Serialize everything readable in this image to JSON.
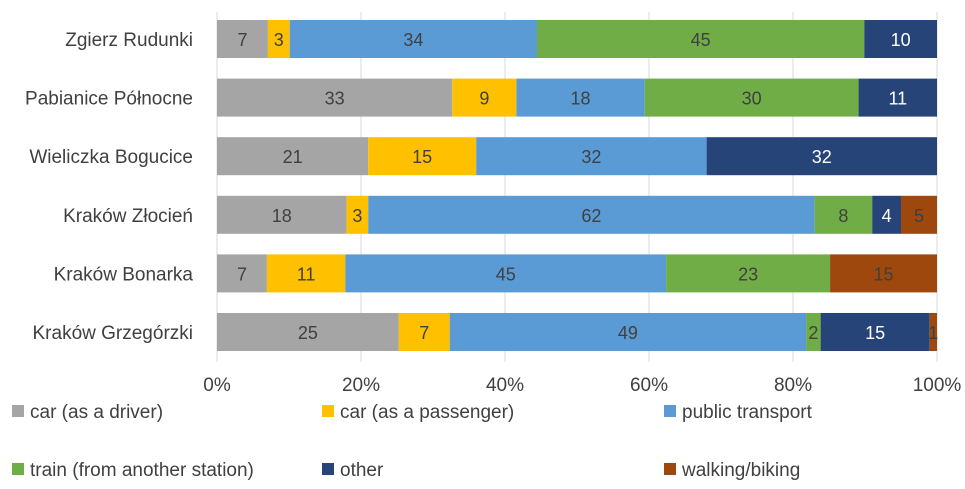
{
  "chart_data": {
    "type": "bar",
    "orientation": "horizontal",
    "stacked": "percent",
    "categories": [
      "Zgierz Rudunki",
      "Pabianice Północne",
      "Wieliczka Bogucice",
      "Kraków Złocień",
      "Kraków Bonarka",
      "Kraków Grzegórzki"
    ],
    "series": [
      {
        "name": "car (as a driver)",
        "color": "#a5a5a5",
        "label_color": "#404040",
        "values": [
          7,
          33,
          21,
          18,
          7,
          25
        ]
      },
      {
        "name": "car (as a passenger)",
        "color": "#ffc000",
        "label_color": "#404040",
        "values": [
          3,
          9,
          15,
          3,
          11,
          7
        ]
      },
      {
        "name": "public transport",
        "color": "#5b9bd5",
        "label_color": "#404040",
        "values": [
          34,
          18,
          32,
          62,
          45,
          49
        ]
      },
      {
        "name": "train (from another station)",
        "color": "#70ad47",
        "label_color": "#404040",
        "values": [
          45,
          30,
          0,
          8,
          23,
          2
        ]
      },
      {
        "name": "other",
        "color": "#264478",
        "label_color": "#ffffff",
        "values": [
          10,
          11,
          32,
          4,
          0,
          15
        ]
      },
      {
        "name": "walking/biking",
        "color": "#9e480e",
        "label_color": "#404040",
        "values": [
          0,
          0,
          0,
          5,
          15,
          1
        ]
      }
    ],
    "xticks": [
      "0%",
      "20%",
      "40%",
      "60%",
      "80%",
      "100%"
    ],
    "xlim": [
      0,
      100
    ],
    "title": "",
    "xlabel": "",
    "ylabel": "",
    "grid": "vertical",
    "legend": "bottom"
  }
}
